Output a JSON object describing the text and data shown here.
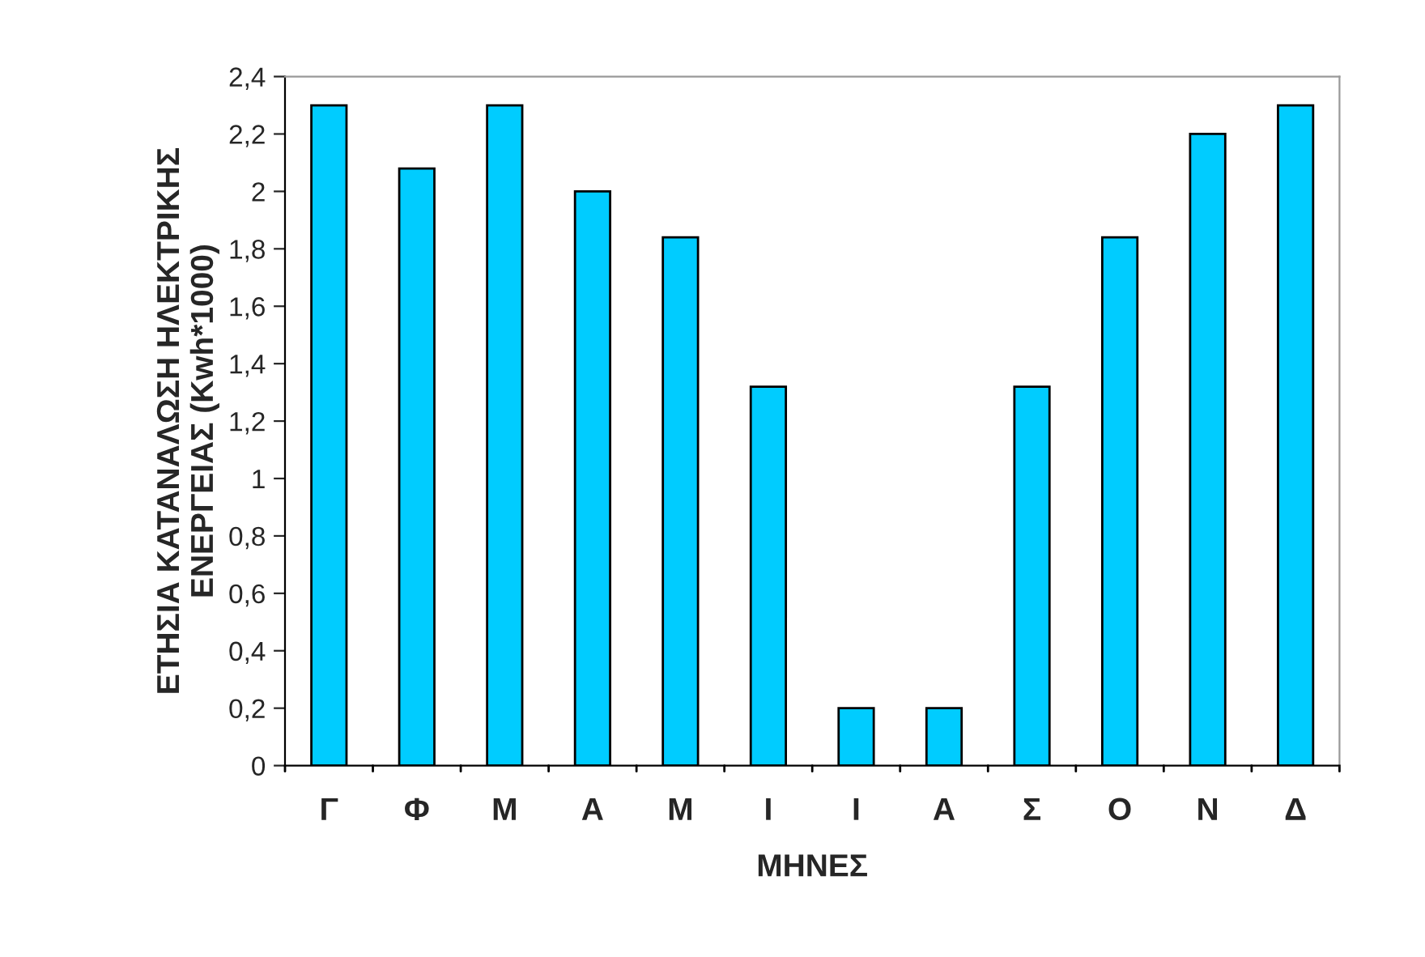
{
  "chart_data": {
    "type": "bar",
    "categories": [
      "Γ",
      "Φ",
      "Μ",
      "Α",
      "Μ",
      "Ι",
      "Ι",
      "Α",
      "Σ",
      "Ο",
      "Ν",
      "Δ"
    ],
    "values": [
      2.3,
      2.08,
      2.3,
      2.0,
      1.84,
      1.32,
      0.2,
      0.2,
      1.32,
      1.84,
      2.2,
      2.3
    ],
    "color": "#00ccff",
    "xlabel": "ΜΗΝΕΣ",
    "ylabel": "ΕΤΗΣΙΑ ΚΑΤΑΝΑΛΩΣΗ ΗΛΕΚΤΡΙΚΗΣ\nΕΝΕΡΓΕΙΑΣ (Kwh*1000)",
    "ylim": [
      0,
      2.4
    ],
    "yticks": [
      0,
      {
        "value": 0.2,
        "label": "0,2"
      },
      {
        "value": 0.4,
        "label": "0,4"
      },
      {
        "value": 0.6,
        "label": "0,6"
      },
      {
        "value": 0.8,
        "label": "0,8"
      },
      1,
      {
        "value": 1.2,
        "label": "1,2"
      },
      {
        "value": 1.4,
        "label": "1,4"
      },
      {
        "value": 1.6,
        "label": "1,6"
      },
      {
        "value": 1.8,
        "label": "1,8"
      },
      2,
      {
        "value": 2.2,
        "label": "2,2"
      },
      {
        "value": 2.4,
        "label": "2,4"
      }
    ],
    "grid": false
  }
}
